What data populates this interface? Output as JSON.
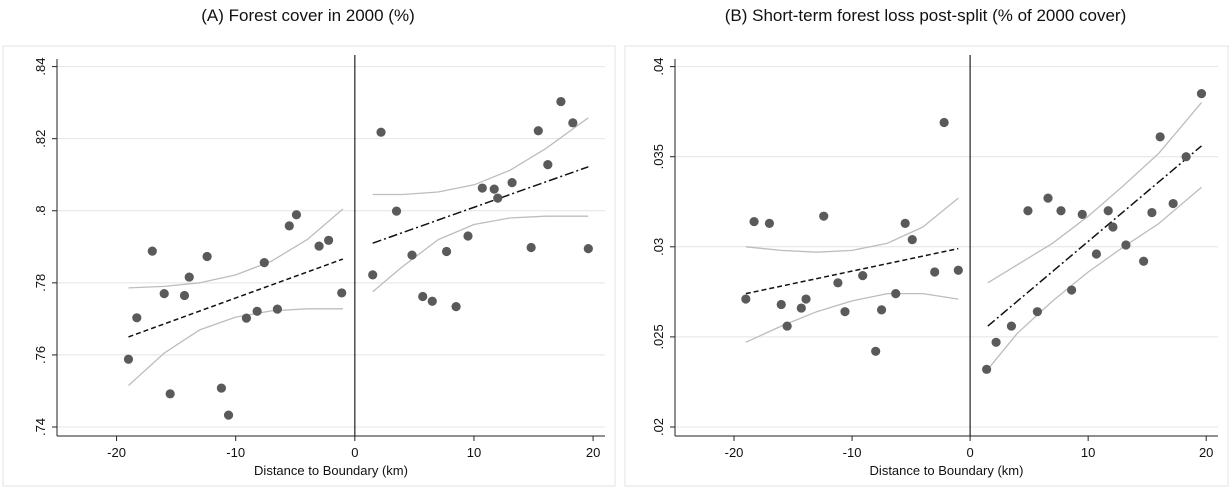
{
  "chart_data": [
    {
      "type": "scatter",
      "title": "(A) Forest cover in 2000 (%)",
      "xlabel": "Distance to Boundary (km)",
      "ylabel": "",
      "xlim": [
        -25,
        21
      ],
      "ylim": [
        0.7375,
        0.841
      ],
      "xticks": [
        -20,
        -10,
        0,
        10,
        20
      ],
      "xtick_labels": [
        "-20",
        "-10",
        "0",
        "10",
        "20"
      ],
      "yticks": [
        0.74,
        0.76,
        0.78,
        0.8,
        0.82,
        0.84
      ],
      "ytick_labels": [
        ".74",
        ".76",
        ".78",
        ".8",
        ".82",
        ".84"
      ],
      "grid": true,
      "cutoff": 0,
      "points": [
        {
          "x": -19.0,
          "y": 0.7588
        },
        {
          "x": -18.3,
          "y": 0.7703
        },
        {
          "x": -17.0,
          "y": 0.7888
        },
        {
          "x": -16.0,
          "y": 0.777
        },
        {
          "x": -15.5,
          "y": 0.7492
        },
        {
          "x": -14.3,
          "y": 0.7765
        },
        {
          "x": -13.9,
          "y": 0.7816
        },
        {
          "x": -12.4,
          "y": 0.7873
        },
        {
          "x": -11.2,
          "y": 0.7508
        },
        {
          "x": -10.6,
          "y": 0.7433
        },
        {
          "x": -9.1,
          "y": 0.7702
        },
        {
          "x": -8.2,
          "y": 0.7721
        },
        {
          "x": -7.6,
          "y": 0.7856
        },
        {
          "x": -6.5,
          "y": 0.7727
        },
        {
          "x": -5.5,
          "y": 0.7958
        },
        {
          "x": -4.9,
          "y": 0.7989
        },
        {
          "x": -3.0,
          "y": 0.7902
        },
        {
          "x": -2.2,
          "y": 0.7918
        },
        {
          "x": -1.1,
          "y": 0.7772
        },
        {
          "x": 1.5,
          "y": 0.7822
        },
        {
          "x": 2.2,
          "y": 0.8218
        },
        {
          "x": 3.5,
          "y": 0.7999
        },
        {
          "x": 4.8,
          "y": 0.7877
        },
        {
          "x": 5.7,
          "y": 0.7762
        },
        {
          "x": 6.5,
          "y": 0.7749
        },
        {
          "x": 7.7,
          "y": 0.7887
        },
        {
          "x": 8.5,
          "y": 0.7734
        },
        {
          "x": 9.5,
          "y": 0.793
        },
        {
          "x": 10.7,
          "y": 0.8063
        },
        {
          "x": 11.7,
          "y": 0.806
        },
        {
          "x": 12.0,
          "y": 0.8035
        },
        {
          "x": 13.2,
          "y": 0.8078
        },
        {
          "x": 14.8,
          "y": 0.7898
        },
        {
          "x": 15.4,
          "y": 0.8222
        },
        {
          "x": 16.2,
          "y": 0.8128
        },
        {
          "x": 17.3,
          "y": 0.8303
        },
        {
          "x": 18.3,
          "y": 0.8244
        },
        {
          "x": 19.6,
          "y": 0.7895
        }
      ],
      "fit_left": {
        "style": "dashed",
        "x": [
          -19,
          -1
        ],
        "y": [
          0.765,
          0.7866
        ]
      },
      "fit_right": {
        "style": "dashdot",
        "x": [
          1.5,
          19.6
        ],
        "y": [
          0.791,
          0.8122
        ]
      },
      "ci_left": {
        "x": [
          -19,
          -16,
          -13,
          -10,
          -7,
          -4,
          -1
        ],
        "upper": [
          0.7786,
          0.779,
          0.78,
          0.7822,
          0.786,
          0.792,
          0.8005
        ],
        "lower": [
          0.7515,
          0.7605,
          0.767,
          0.7705,
          0.7722,
          0.7728,
          0.7728
        ]
      },
      "ci_right": {
        "x": [
          1.5,
          4,
          7,
          10,
          13,
          16,
          19.6
        ],
        "upper": [
          0.8045,
          0.8045,
          0.8052,
          0.8072,
          0.8112,
          0.8172,
          0.8258
        ],
        "lower": [
          0.7775,
          0.7845,
          0.792,
          0.7962,
          0.798,
          0.7985,
          0.7985
        ]
      }
    },
    {
      "type": "scatter",
      "title": "(B) Short-term forest loss post-split (% of 2000 cover)",
      "xlabel": "Distance to Boundary (km)",
      "ylabel": "",
      "xlim": [
        -25,
        21
      ],
      "ylim": [
        0.0195,
        0.0402
      ],
      "xticks": [
        -20,
        -10,
        0,
        10,
        20
      ],
      "xtick_labels": [
        "-20",
        "-10",
        "0",
        "10",
        "20"
      ],
      "yticks": [
        0.02,
        0.025,
        0.03,
        0.035,
        0.04
      ],
      "ytick_labels": [
        ".02",
        ".025",
        ".03",
        ".035",
        ".04"
      ],
      "grid": true,
      "cutoff": 0,
      "points": [
        {
          "x": -19.0,
          "y": 0.0271
        },
        {
          "x": -18.3,
          "y": 0.0314
        },
        {
          "x": -17.0,
          "y": 0.0313
        },
        {
          "x": -16.0,
          "y": 0.0268
        },
        {
          "x": -15.5,
          "y": 0.0256
        },
        {
          "x": -14.3,
          "y": 0.0266
        },
        {
          "x": -13.9,
          "y": 0.0271
        },
        {
          "x": -12.4,
          "y": 0.0317
        },
        {
          "x": -11.2,
          "y": 0.028
        },
        {
          "x": -10.6,
          "y": 0.0264
        },
        {
          "x": -9.1,
          "y": 0.0284
        },
        {
          "x": -8.0,
          "y": 0.0242
        },
        {
          "x": -7.5,
          "y": 0.0265
        },
        {
          "x": -6.3,
          "y": 0.0274
        },
        {
          "x": -5.5,
          "y": 0.0313
        },
        {
          "x": -4.9,
          "y": 0.0304
        },
        {
          "x": -3.0,
          "y": 0.0286
        },
        {
          "x": -2.2,
          "y": 0.0369
        },
        {
          "x": -1.0,
          "y": 0.0287
        },
        {
          "x": 1.4,
          "y": 0.0232
        },
        {
          "x": 2.2,
          "y": 0.0247
        },
        {
          "x": 3.5,
          "y": 0.0256
        },
        {
          "x": 4.9,
          "y": 0.032
        },
        {
          "x": 5.7,
          "y": 0.0264
        },
        {
          "x": 6.6,
          "y": 0.0327
        },
        {
          "x": 7.7,
          "y": 0.032
        },
        {
          "x": 8.6,
          "y": 0.0276
        },
        {
          "x": 9.5,
          "y": 0.0318
        },
        {
          "x": 10.7,
          "y": 0.0296
        },
        {
          "x": 11.7,
          "y": 0.032
        },
        {
          "x": 12.1,
          "y": 0.0311
        },
        {
          "x": 13.2,
          "y": 0.0301
        },
        {
          "x": 14.7,
          "y": 0.0292
        },
        {
          "x": 15.4,
          "y": 0.0319
        },
        {
          "x": 16.1,
          "y": 0.0361
        },
        {
          "x": 17.2,
          "y": 0.0324
        },
        {
          "x": 18.3,
          "y": 0.035
        },
        {
          "x": 19.6,
          "y": 0.0385
        }
      ],
      "fit_left": {
        "style": "dashed",
        "x": [
          -19,
          -1
        ],
        "y": [
          0.0274,
          0.0299
        ]
      },
      "fit_right": {
        "style": "dashdot",
        "x": [
          1.5,
          19.6
        ],
        "y": [
          0.0256,
          0.0356
        ]
      },
      "ci_left": {
        "x": [
          -19,
          -16,
          -13,
          -10,
          -7,
          -4,
          -1
        ],
        "upper": [
          0.03,
          0.0298,
          0.0297,
          0.0298,
          0.0302,
          0.0311,
          0.0327
        ],
        "lower": [
          0.0247,
          0.0256,
          0.0264,
          0.027,
          0.0274,
          0.0274,
          0.0271
        ]
      },
      "ci_right": {
        "x": [
          1.5,
          4,
          7,
          10,
          13,
          16,
          19.6
        ],
        "upper": [
          0.028,
          0.029,
          0.0302,
          0.0317,
          0.0334,
          0.0352,
          0.038
        ],
        "lower": [
          0.0232,
          0.0252,
          0.027,
          0.0286,
          0.03,
          0.0313,
          0.0333
        ]
      }
    }
  ]
}
